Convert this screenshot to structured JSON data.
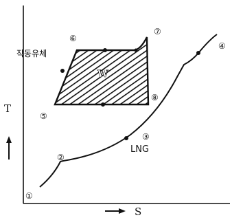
{
  "axes": {
    "y_label": "T",
    "x_label": "S"
  },
  "markers": {
    "m1": "①",
    "m2": "②",
    "m3": "③",
    "m4": "④",
    "m5": "⑤",
    "m6": "⑥",
    "m7": "⑦",
    "m8": "⑧"
  },
  "labels": {
    "working_fluid": "작동유체",
    "work": "W",
    "lng": "LNG"
  }
}
